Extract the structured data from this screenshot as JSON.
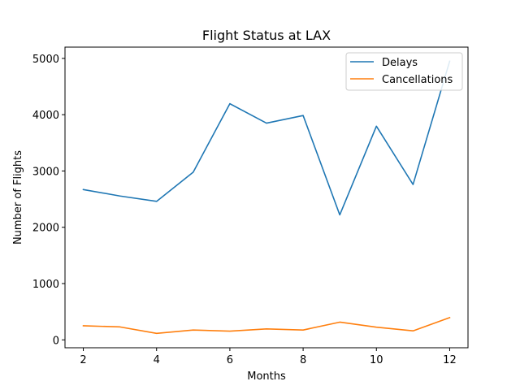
{
  "chart_data": {
    "type": "line",
    "title": "Flight Status at LAX",
    "xlabel": "Months",
    "ylabel": "Number of Flights",
    "x": [
      2,
      3,
      4,
      5,
      6,
      7,
      8,
      9,
      10,
      11,
      12
    ],
    "xlim": [
      1.5,
      12.5
    ],
    "ylim": [
      -140,
      5200
    ],
    "x_ticks": [
      "2",
      "4",
      "6",
      "8",
      "10",
      "12"
    ],
    "y_ticks": [
      "0",
      "1000",
      "2000",
      "3000",
      "4000",
      "5000"
    ],
    "legend_position": "top-right",
    "grid": false,
    "series": [
      {
        "name": "Delays",
        "color": "#1f77b4",
        "values": [
          2670,
          2555,
          2460,
          2980,
          4195,
          3850,
          3985,
          2220,
          3795,
          2760,
          4950
        ]
      },
      {
        "name": "Cancellations",
        "color": "#ff7f0e",
        "values": [
          250,
          230,
          115,
          175,
          155,
          195,
          175,
          315,
          225,
          160,
          395
        ]
      }
    ]
  }
}
